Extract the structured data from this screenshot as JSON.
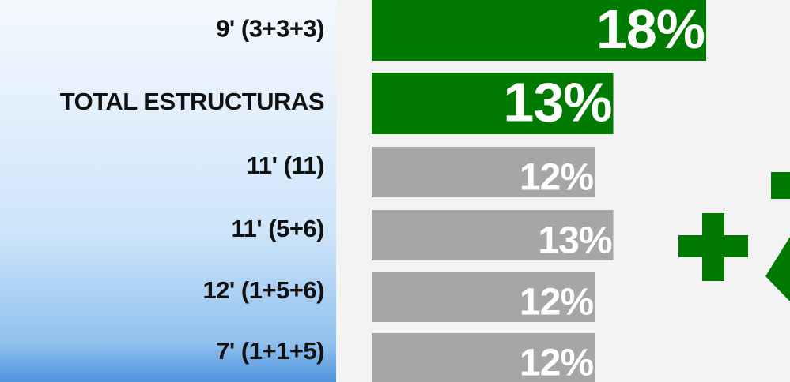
{
  "chart_data": {
    "type": "barh",
    "categories": [
      "9' (3+3+3)",
      "TOTAL ESTRUCTURAS",
      "11' (11)",
      "11' (5+6)",
      "12' (1+5+6)",
      "7' (1+1+5)"
    ],
    "values": [
      18,
      13,
      12,
      13,
      12,
      12
    ],
    "value_labels": [
      "18%",
      "13%",
      "12%",
      "13%",
      "12%",
      "12%"
    ],
    "colors": [
      "#007a00",
      "#007a00",
      "#a6a6a6",
      "#a6a6a6",
      "#a6a6a6",
      "#a6a6a6"
    ]
  }
}
